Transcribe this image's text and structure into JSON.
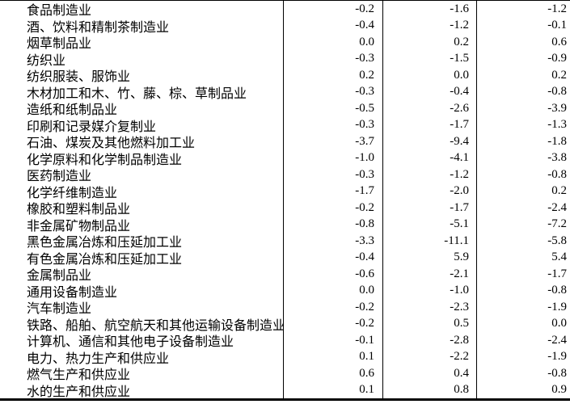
{
  "colors": {
    "background": "#ffffff",
    "text": "#000000",
    "border": "#000000"
  },
  "table": {
    "description": "industry-price-index-table",
    "rows": [
      {
        "name": "食品制造业",
        "values": [
          "-0.2",
          "-1.6",
          "-1.2"
        ]
      },
      {
        "name": "酒、饮料和精制茶制造业",
        "values": [
          "-0.4",
          "-1.2",
          "-0.1"
        ]
      },
      {
        "name": "烟草制品业",
        "values": [
          "0.0",
          "0.2",
          "0.6"
        ]
      },
      {
        "name": "纺织业",
        "values": [
          "-0.3",
          "-1.5",
          "-0.9"
        ]
      },
      {
        "name": "纺织服装、服饰业",
        "values": [
          "0.2",
          "0.0",
          "0.2"
        ]
      },
      {
        "name": "木材加工和木、竹、藤、棕、草制品业",
        "values": [
          "-0.3",
          "-0.4",
          "-0.8"
        ]
      },
      {
        "name": "造纸和纸制品业",
        "values": [
          "-0.5",
          "-2.6",
          "-3.9"
        ]
      },
      {
        "name": "印刷和记录媒介复制业",
        "values": [
          "-0.3",
          "-1.7",
          "-1.3"
        ]
      },
      {
        "name": "石油、煤炭及其他燃料加工业",
        "values": [
          "-3.7",
          "-9.4",
          "-1.8"
        ]
      },
      {
        "name": "化学原料和化学制品制造业",
        "values": [
          "-1.0",
          "-4.1",
          "-3.8"
        ]
      },
      {
        "name": "医药制造业",
        "values": [
          "-0.3",
          "-1.2",
          "-0.8"
        ]
      },
      {
        "name": "化学纤维制造业",
        "values": [
          "-1.7",
          "-2.0",
          "0.2"
        ]
      },
      {
        "name": "橡胶和塑料制品业",
        "values": [
          "-0.2",
          "-1.7",
          "-2.4"
        ]
      },
      {
        "name": "非金属矿物制品业",
        "values": [
          "-0.8",
          "-5.1",
          "-7.2"
        ]
      },
      {
        "name": "黑色金属冶炼和压延加工业",
        "values": [
          "-3.3",
          "-11.1",
          "-5.8"
        ]
      },
      {
        "name": "有色金属冶炼和压延加工业",
        "values": [
          "-0.4",
          "5.9",
          "5.4"
        ]
      },
      {
        "name": "金属制品业",
        "values": [
          "-0.6",
          "-2.1",
          "-1.7"
        ]
      },
      {
        "name": "通用设备制造业",
        "values": [
          "0.0",
          "-1.0",
          "-0.8"
        ]
      },
      {
        "name": "汽车制造业",
        "values": [
          "-0.2",
          "-2.3",
          "-1.9"
        ]
      },
      {
        "name": "铁路、船舶、航空航天和其他运输设备制造业",
        "values": [
          "-0.2",
          "0.5",
          "0.0"
        ]
      },
      {
        "name": "计算机、通信和其他电子设备制造业",
        "values": [
          "-0.1",
          "-2.8",
          "-2.4"
        ]
      },
      {
        "name": "电力、热力生产和供应业",
        "values": [
          "0.1",
          "-2.2",
          "-1.9"
        ]
      },
      {
        "name": "燃气生产和供应业",
        "values": [
          "0.6",
          "0.4",
          "-0.8"
        ]
      },
      {
        "name": "水的生产和供应业",
        "values": [
          "0.1",
          "0.8",
          "0.9"
        ]
      }
    ]
  }
}
